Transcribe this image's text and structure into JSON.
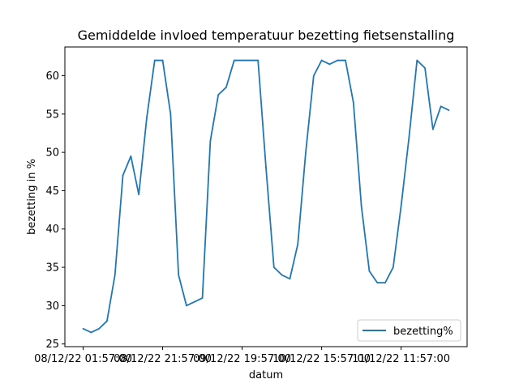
{
  "chart_data": {
    "type": "line",
    "title": "Gemiddelde invloed temperatuur bezetting fietsenstalling",
    "xlabel": "datum",
    "ylabel": "bezetting in %",
    "ylim": [
      24.65,
      63.75
    ],
    "y_ticks": [
      25,
      30,
      35,
      40,
      45,
      50,
      55,
      60
    ],
    "x_tick_labels": [
      "08/12/22 01:57:00",
      "08/12/22 21:57:00",
      "09/12/22 19:57:00",
      "10/12/22 15:57:00",
      "11/12/22 11:57:00"
    ],
    "x_tick_index": [
      0,
      10,
      20,
      30,
      40
    ],
    "grid": false,
    "legend_position": "lower-right",
    "series": [
      {
        "name": "bezetting%",
        "color": "#1f77b4",
        "values": [
          27,
          26.5,
          27,
          28,
          34,
          47,
          49.5,
          44.5,
          54.5,
          62,
          62,
          55,
          34,
          30,
          30.5,
          31,
          51.5,
          57.5,
          58.5,
          62,
          62,
          62,
          62,
          48,
          35,
          34,
          33.5,
          38,
          50,
          60,
          62,
          61.5,
          62,
          62,
          56.5,
          43,
          34.5,
          33,
          33,
          35,
          43,
          52,
          62,
          61,
          53,
          56,
          55.5
        ]
      }
    ]
  }
}
